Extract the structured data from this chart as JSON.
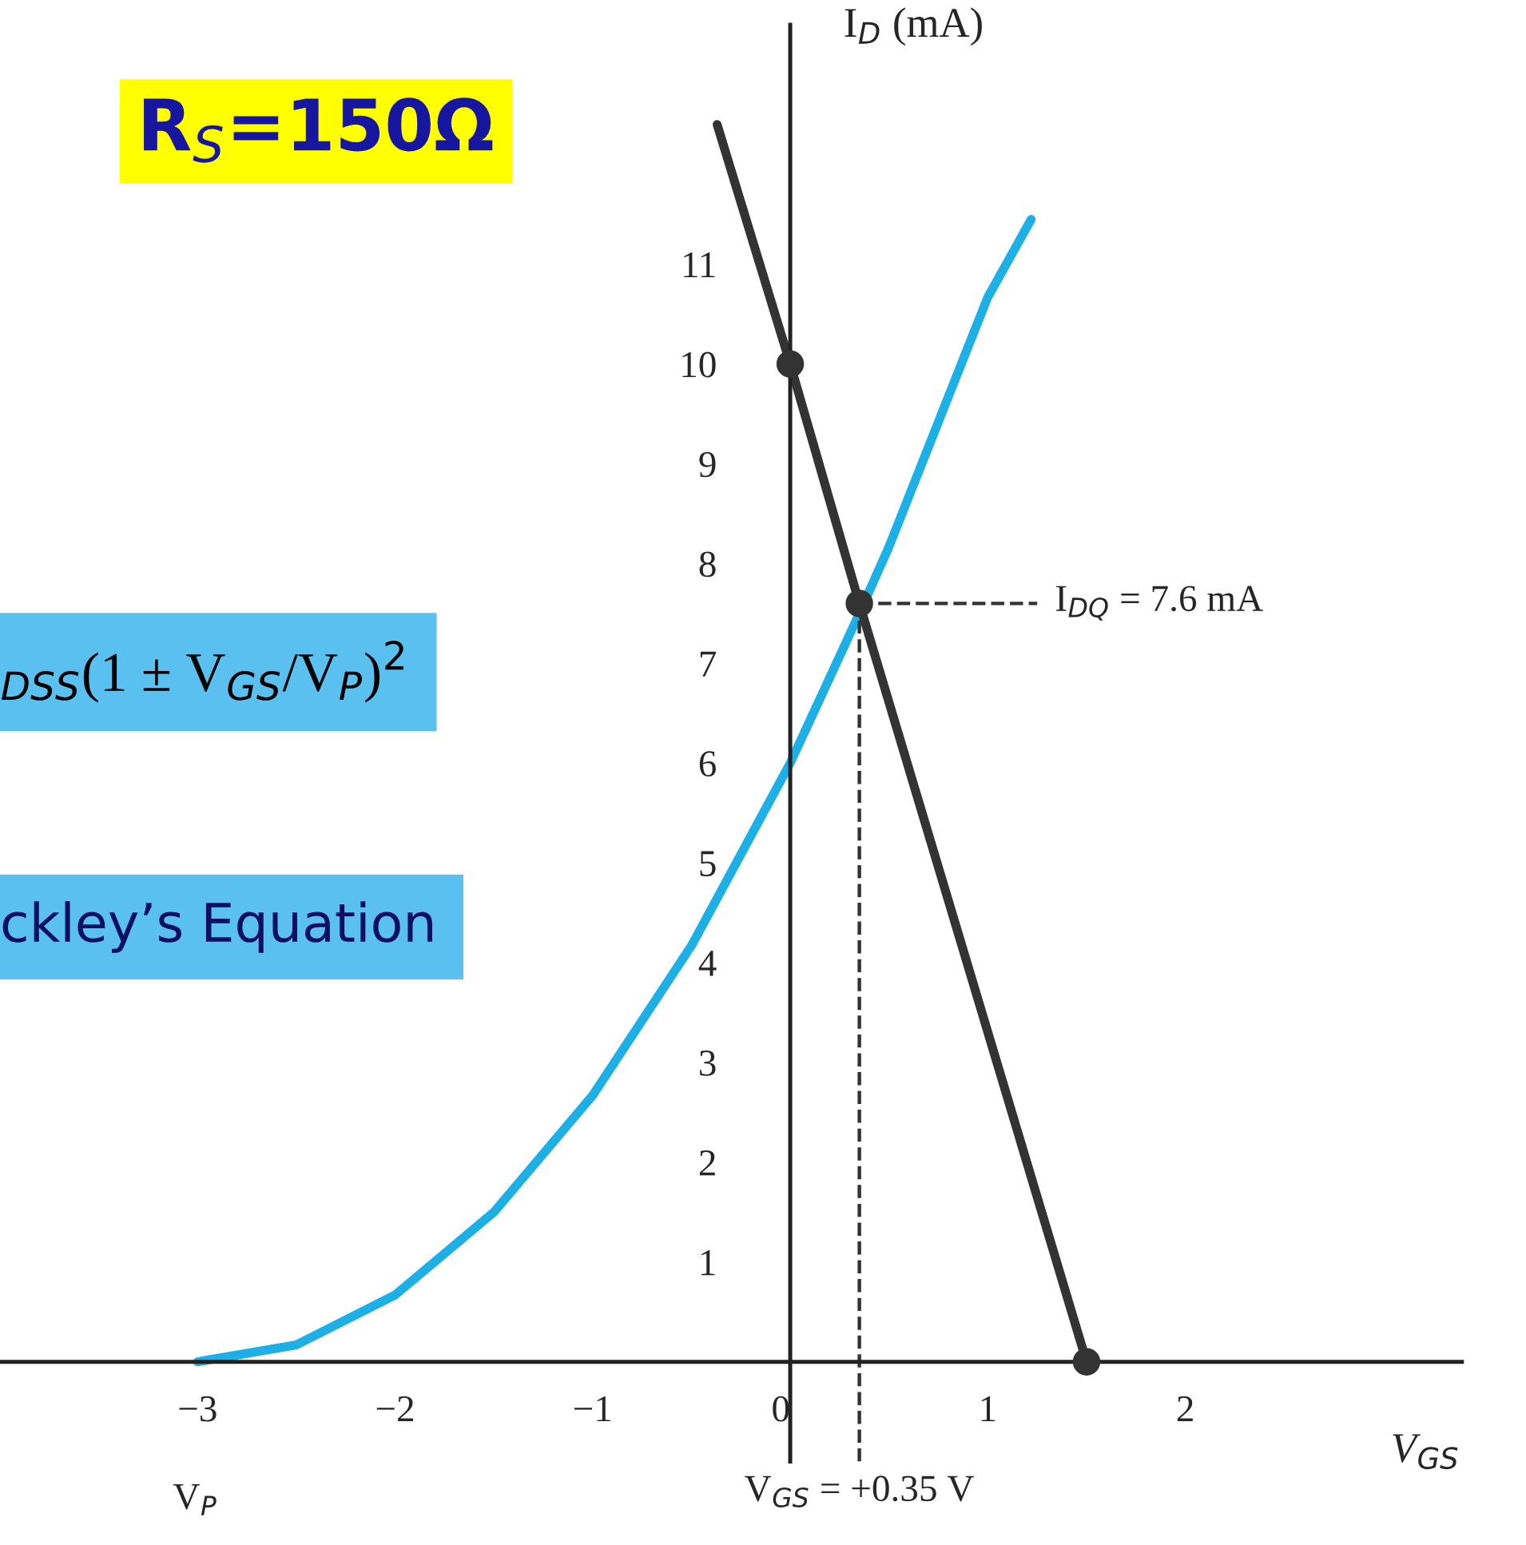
{
  "chart_data": {
    "type": "line",
    "title": "R$_{S}$=150Ω",
    "xlabel": "V$_{GS}$",
    "ylabel": "I$_{D}$ (mA)",
    "xlim": [
      -4,
      3.4
    ],
    "ylim": [
      -1,
      13.4
    ],
    "xticks": [
      {
        "value": -3,
        "label": "−3"
      },
      {
        "value": -2,
        "label": "−2"
      },
      {
        "value": -1,
        "label": "−1"
      },
      0,
      1,
      2
    ],
    "yticks": [
      1,
      2,
      3,
      4,
      5,
      6,
      7,
      8,
      9,
      10,
      11
    ],
    "grid": false,
    "series": [
      {
        "color": "#1cb0e6",
        "line_style": "solid",
        "x": [
          -3,
          -2.5,
          -2,
          -1.5,
          -1,
          -0.5,
          0,
          0.35,
          0.5,
          1,
          1.22
        ],
        "values": [
          0,
          0.17,
          0.67,
          1.5,
          2.67,
          4.17,
          6,
          7.5,
          8.17,
          10.67,
          11.45
        ]
      },
      {
        "color": "#333333",
        "line_style": "solid",
        "x": [
          -0.37,
          0,
          0.35,
          1.5
        ],
        "values": [
          12.4,
          10,
          7.6,
          0
        ]
      },
      {
        "type": "scatter",
        "color": "#333333",
        "marker": "circle",
        "x": [
          0,
          0.35,
          1.5
        ],
        "values": [
          10,
          7.6,
          0
        ]
      },
      {
        "color": "#333333",
        "line_style": "dashed",
        "x": [
          0.35,
          1.25
        ],
        "values": [
          7.6,
          7.6
        ]
      },
      {
        "color": "#333333",
        "line_style": "dashed",
        "x": [
          0.35,
          0.35
        ],
        "values": [
          -1,
          7.6
        ]
      }
    ],
    "annotations": [
      "V$_{P}$",
      {
        "text": "I$_{DQ}$ = 7.6 mA",
        "x": 1.25,
        "y": 7.6
      },
      {
        "text": "V$_{GS}$ = +0.35 V",
        "x": 0.35,
        "y": -1
      },
      "$_{DSS}$(1 ± V$_{GS}$/V$_{P}$)$^{2}$",
      "ckley’s Equation"
    ]
  }
}
